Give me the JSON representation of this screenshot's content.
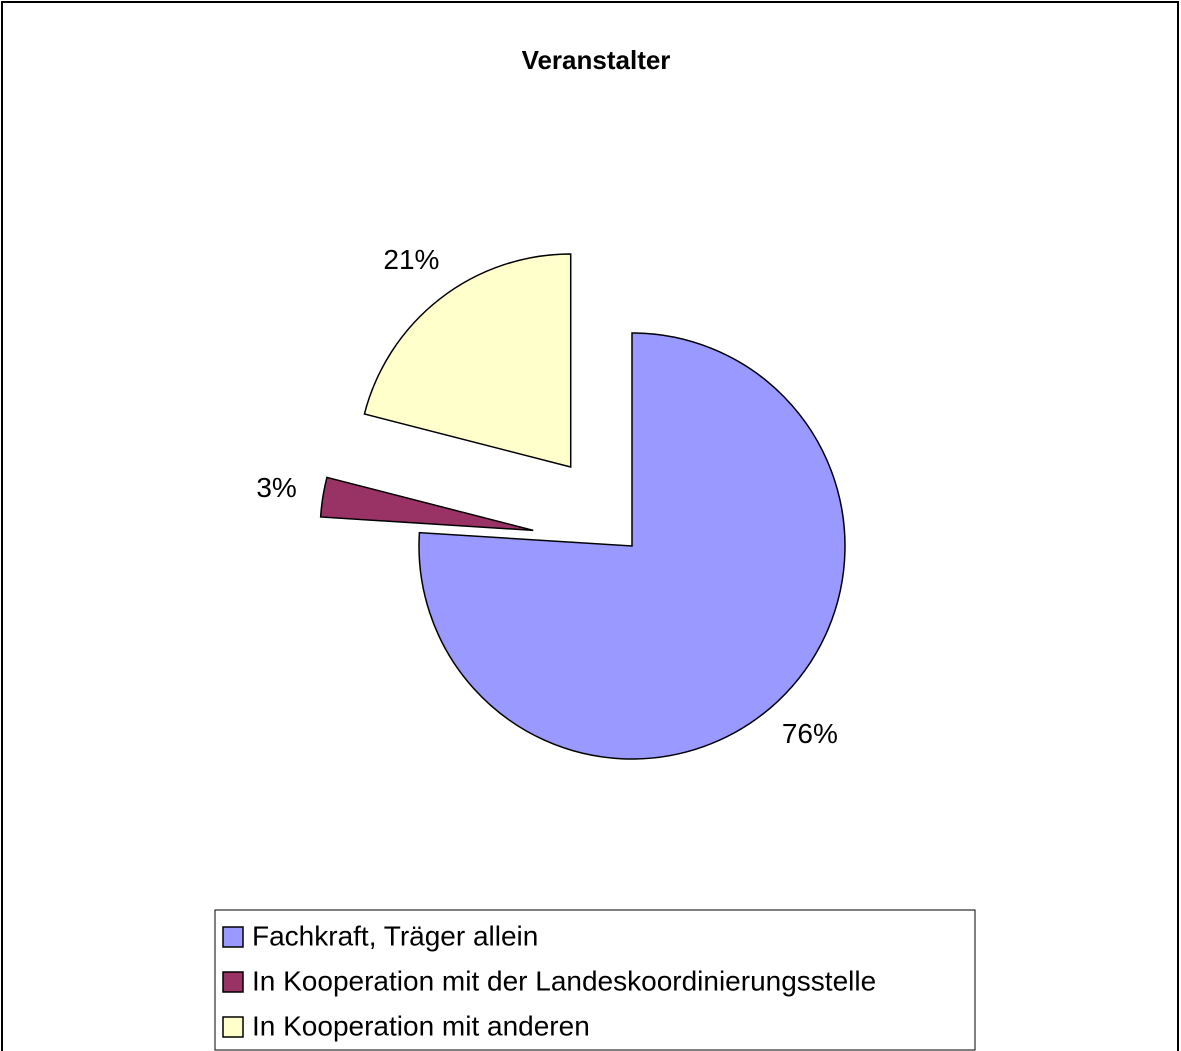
{
  "chart_data": {
    "type": "pie",
    "title": "Veranstalter",
    "categories": [
      "Fachkraft, Träger allein",
      "In Kooperation mit der Landeskoordinierungsstelle",
      "In Kooperation mit anderen"
    ],
    "values": [
      76,
      3,
      21
    ],
    "value_labels": [
      "76%",
      "3%",
      "21%"
    ],
    "colors": [
      "#9999ff",
      "#993366",
      "#ffffcc"
    ]
  }
}
